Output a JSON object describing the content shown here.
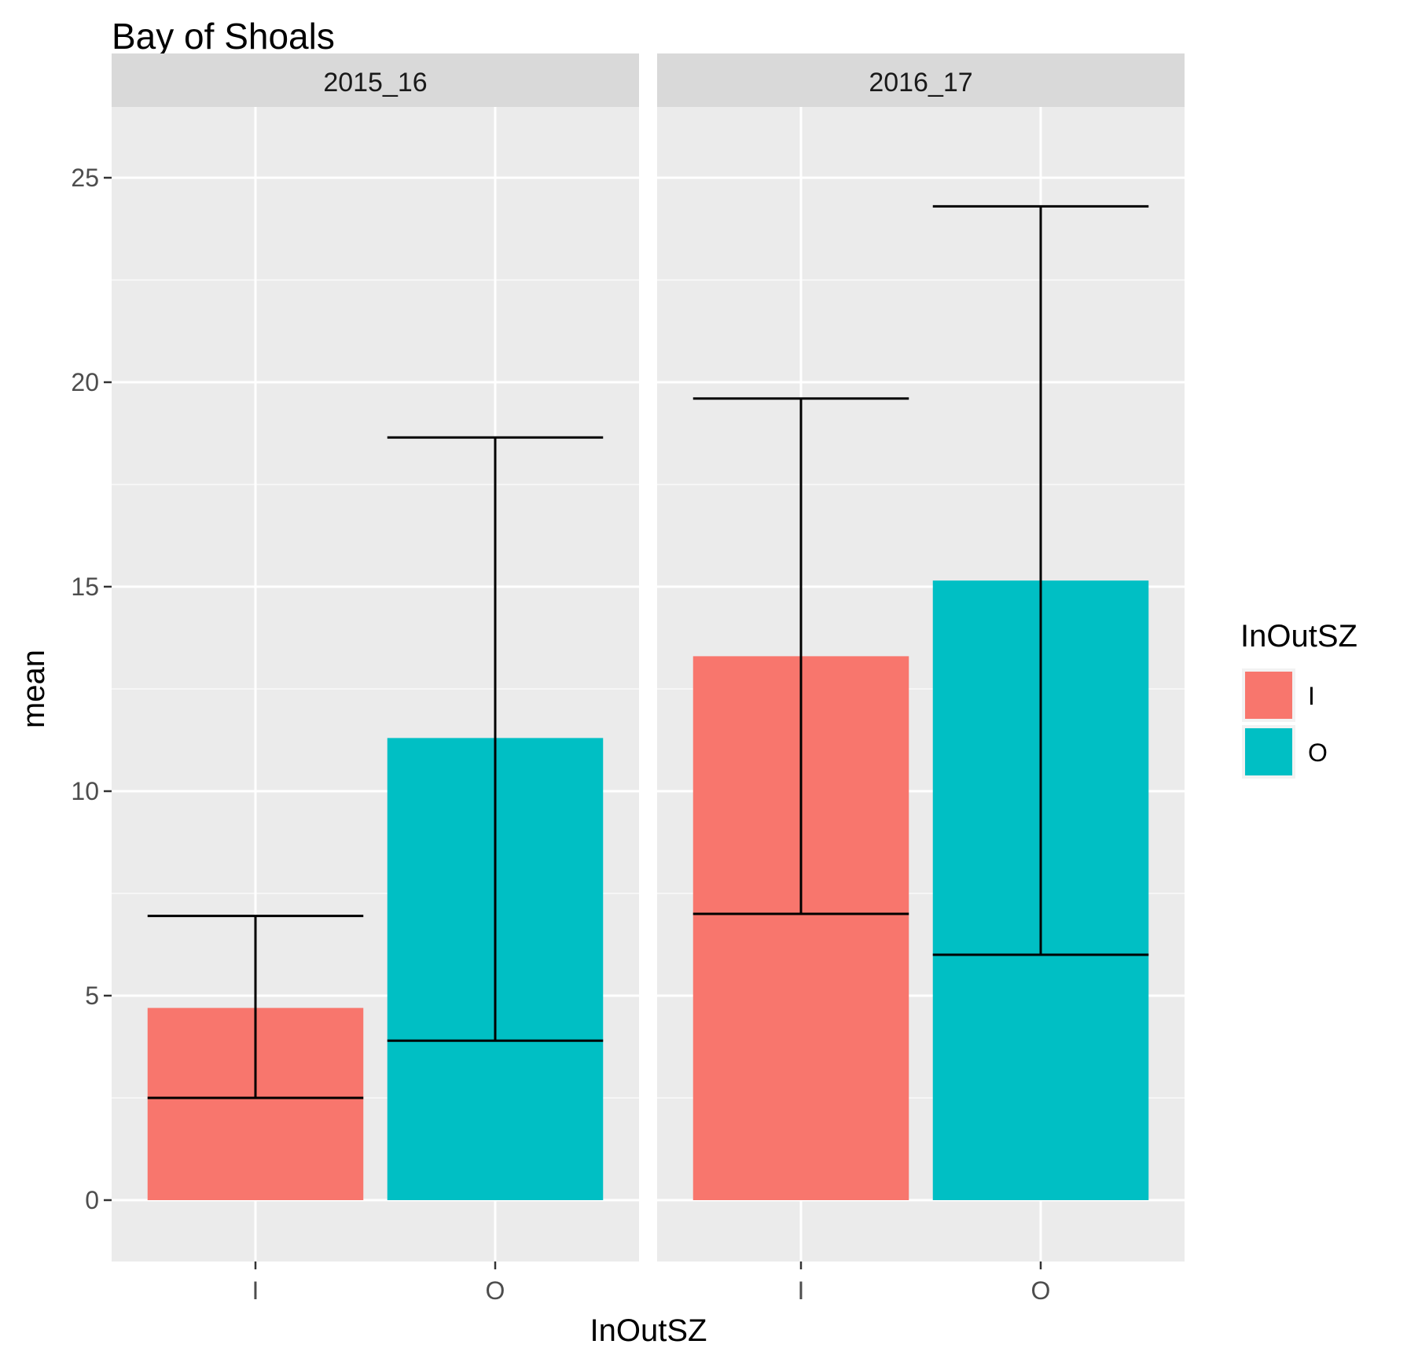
{
  "chart_data": {
    "type": "bar",
    "title": "Bay of Shoals",
    "xlabel": "InOutSZ",
    "ylabel": "mean",
    "ylim": [
      -1.5,
      26
    ],
    "yticks": [
      0,
      5,
      10,
      15,
      20,
      25
    ],
    "categories": [
      "I",
      "O"
    ],
    "facets": [
      "2015_16",
      "2016_17"
    ],
    "grid": true,
    "legend": {
      "title": "InOutSZ",
      "position": "right",
      "entries": [
        {
          "label": "I",
          "color": "#F8766D"
        },
        {
          "label": "O",
          "color": "#00BFC4"
        }
      ]
    },
    "series": [
      {
        "facet": "2015_16",
        "values": [
          4.7,
          11.3
        ],
        "error_low": [
          2.5,
          3.9
        ],
        "error_high": [
          6.95,
          18.65
        ]
      },
      {
        "facet": "2016_17",
        "values": [
          13.3,
          15.15
        ],
        "error_low": [
          7.0,
          6.0
        ],
        "error_high": [
          19.6,
          24.3
        ]
      }
    ]
  },
  "colors": {
    "panel_bg": "#EBEBEB",
    "strip_bg": "#D9D9D9",
    "grid_major": "#FFFFFF",
    "grid_minor": "#F5F5F5",
    "errorbar": "#000000"
  }
}
